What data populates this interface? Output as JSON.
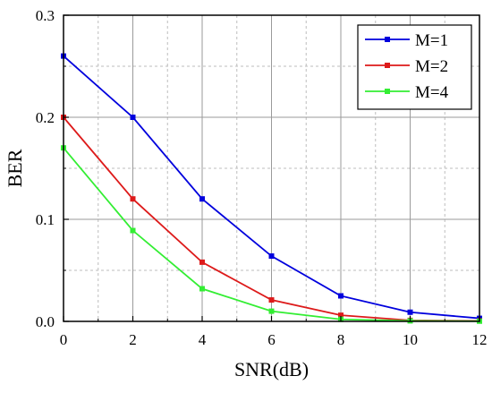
{
  "chart_data": {
    "type": "line",
    "title": "",
    "xlabel": "SNR(dB)",
    "ylabel": "BER",
    "xlim": [
      0,
      12
    ],
    "ylim": [
      0,
      0.3
    ],
    "x_ticks": [
      0,
      2,
      4,
      6,
      8,
      10,
      12
    ],
    "x_tick_labels": [
      "0",
      "2",
      "4",
      "6",
      "8",
      "10",
      "12"
    ],
    "y_ticks": [
      0,
      0.1,
      0.2,
      0.3
    ],
    "y_tick_labels": [
      "0.0",
      "0.1",
      "0.2",
      "0.3"
    ],
    "grid": true,
    "minor_grid": true,
    "legend_position": "top-right",
    "x": [
      0,
      2,
      4,
      6,
      8,
      10,
      12
    ],
    "series": [
      {
        "name": "M=1",
        "color": "#0000dd",
        "marker": "square",
        "values": [
          0.26,
          0.2,
          0.12,
          0.064,
          0.025,
          0.009,
          0.003
        ]
      },
      {
        "name": "M=2",
        "color": "#dd1a1a",
        "marker": "square",
        "values": [
          0.2,
          0.12,
          0.058,
          0.021,
          0.006,
          0.001,
          0.0005
        ]
      },
      {
        "name": "M=4",
        "color": "#33ee33",
        "marker": "square",
        "values": [
          0.17,
          0.089,
          0.032,
          0.01,
          0.002,
          0.0005,
          0.0002
        ]
      }
    ]
  }
}
